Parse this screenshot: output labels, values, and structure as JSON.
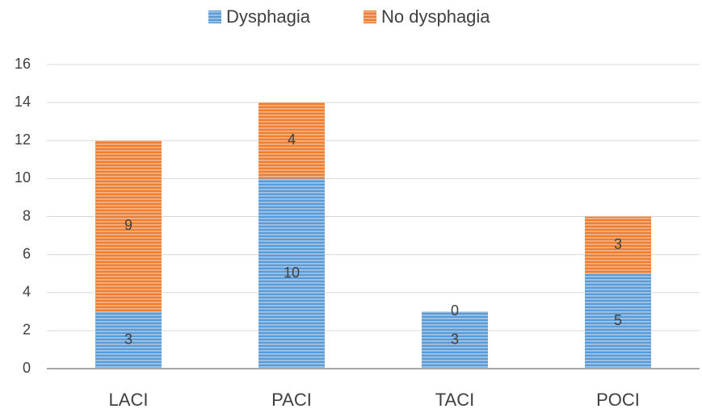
{
  "chart_data": {
    "type": "stacked_bar",
    "categories": [
      "LACI",
      "PACI",
      "TACI",
      "POCI"
    ],
    "series": [
      {
        "name": "Dysphagia",
        "color": "#5b9bd5",
        "values": [
          3,
          10,
          3,
          5
        ]
      },
      {
        "name": "No dysphagia",
        "color": "#ed7d31",
        "values": [
          9,
          4,
          0,
          3
        ]
      }
    ],
    "ylim": [
      0,
      16
    ],
    "yticks": [
      0,
      2,
      4,
      6,
      8,
      10,
      12,
      14,
      16
    ],
    "grid": true,
    "legend": "top"
  }
}
